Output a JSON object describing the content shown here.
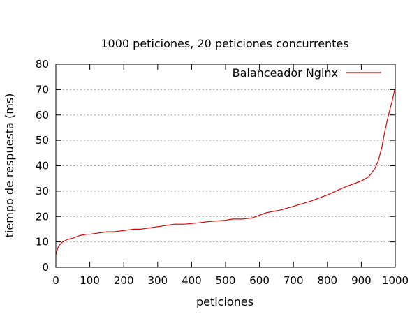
{
  "chart_data": {
    "type": "line",
    "title": "1000 peticiones, 20 peticiones concurrentes",
    "xlabel": "peticiones",
    "ylabel": "tiempo de respuesta (ms)",
    "xlim": [
      0,
      1000
    ],
    "ylim": [
      0,
      80
    ],
    "xticks": [
      0,
      100,
      200,
      300,
      400,
      500,
      600,
      700,
      800,
      900,
      1000
    ],
    "yticks": [
      0,
      10,
      20,
      30,
      40,
      50,
      60,
      70,
      80
    ],
    "grid": "horizontal",
    "legend": "top-right",
    "series": [
      {
        "name": "Balanceador Nginx",
        "color": "#e00000",
        "x": [
          0,
          3,
          7,
          12,
          20,
          35,
          50,
          70,
          90,
          100,
          150,
          170,
          200,
          230,
          250,
          300,
          350,
          380,
          420,
          450,
          500,
          520,
          550,
          580,
          600,
          620,
          640,
          660,
          700,
          750,
          800,
          850,
          900,
          920,
          930,
          940,
          950,
          960,
          970,
          980,
          990,
          1000
        ],
        "y": [
          5,
          6.5,
          8,
          9,
          10,
          11,
          11.5,
          12.5,
          13,
          13,
          14,
          14,
          14.5,
          15,
          15,
          16,
          17,
          17,
          17.5,
          18,
          18.5,
          19,
          19,
          19.5,
          20.5,
          21.5,
          22,
          22.5,
          24,
          26,
          28.5,
          31.5,
          34,
          35.5,
          37,
          39,
          42,
          47,
          54,
          60,
          65,
          71
        ]
      }
    ]
  }
}
